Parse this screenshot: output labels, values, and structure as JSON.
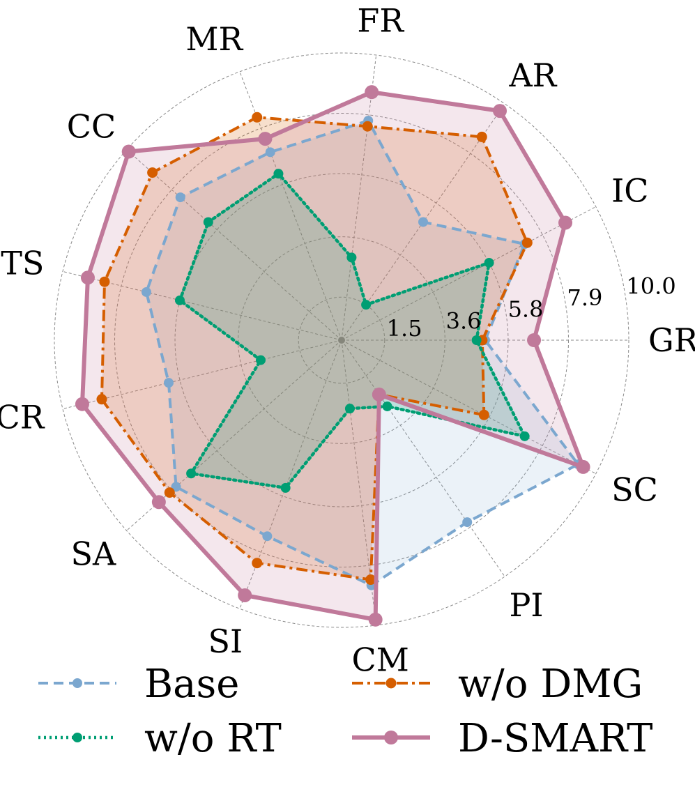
{
  "chart_data": {
    "type": "radar",
    "title": "",
    "axes": [
      "GR",
      "IC",
      "AR",
      "FR",
      "MR",
      "CC",
      "TS",
      "CR",
      "SA",
      "SI",
      "CM",
      "PI",
      "SC"
    ],
    "rlim": [
      0,
      10.0
    ],
    "rticks": [
      1.5,
      3.6,
      5.8,
      7.9,
      10.0
    ],
    "rtick_labels": [
      "1.5",
      "3.6",
      "5.8",
      "7.9",
      "10.0"
    ],
    "grid": true,
    "legend_position": "bottom",
    "series": [
      {
        "name": "Base",
        "color": "#7ba7cf",
        "line_style": "dashed",
        "values": [
          5.0,
          7.2,
          5.0,
          7.7,
          7.0,
          7.5,
          7.0,
          6.2,
          7.7,
          7.3,
          8.6,
          7.7,
          9.3
        ]
      },
      {
        "name": "w/o DMG",
        "color": "#d55e00",
        "line_style": "dashdot",
        "values": [
          4.9,
          7.3,
          8.6,
          7.5,
          8.3,
          8.8,
          8.5,
          8.6,
          8.0,
          8.3,
          8.4,
          2.3,
          5.6
        ]
      },
      {
        "name": "w/o RT",
        "color": "#009e73",
        "line_style": "dotted",
        "values": [
          4.7,
          5.8,
          1.5,
          2.9,
          6.2,
          6.2,
          5.8,
          2.9,
          7.0,
          5.5,
          2.4,
          2.8,
          7.2
        ]
      },
      {
        "name": "D-SMART",
        "color": "#c0799a",
        "line_style": "solid",
        "values": [
          6.7,
          8.8,
          9.7,
          8.7,
          7.5,
          9.9,
          9.1,
          9.3,
          8.5,
          9.5,
          9.8,
          2.3,
          9.5
        ]
      }
    ]
  }
}
